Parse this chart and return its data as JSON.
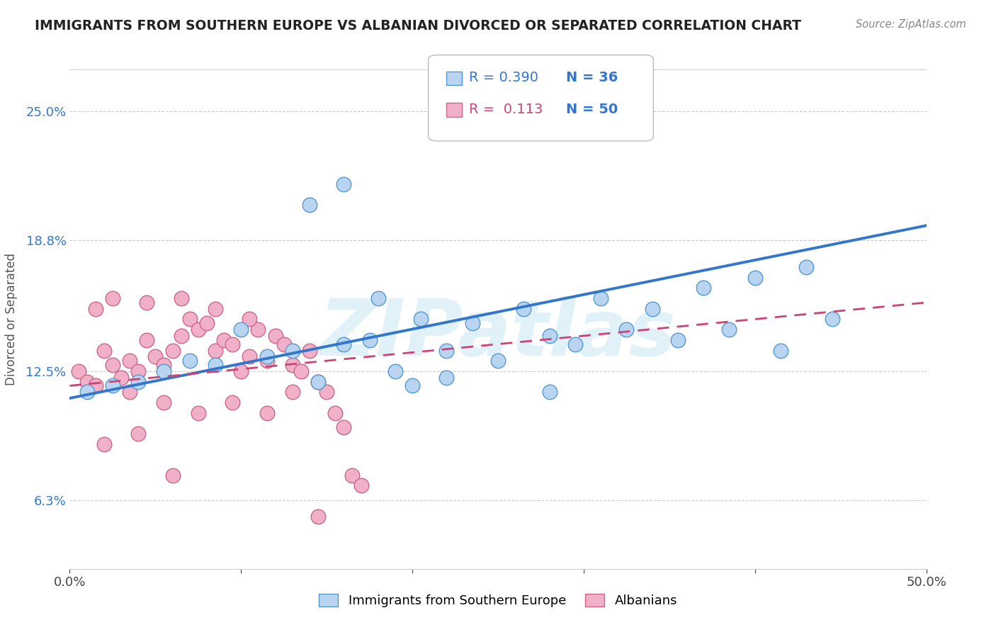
{
  "title": "IMMIGRANTS FROM SOUTHERN EUROPE VS ALBANIAN DIVORCED OR SEPARATED CORRELATION CHART",
  "source_text": "Source: ZipAtlas.com",
  "ylabel": "Divorced or Separated",
  "x_min": 0.0,
  "x_max": 50.0,
  "y_min": 3.0,
  "y_max": 27.0,
  "y_ticks": [
    6.3,
    12.5,
    18.8,
    25.0
  ],
  "x_ticks": [
    0.0,
    10.0,
    20.0,
    30.0,
    40.0,
    50.0
  ],
  "blue_color": "#b8d4f0",
  "blue_edge": "#5599cc",
  "pink_color": "#f0b0c8",
  "pink_edge": "#cc6688",
  "line_blue": "#3377cc",
  "line_pink": "#cc4477",
  "legend_label_blue": "Immigrants from Southern Europe",
  "legend_label_pink": "Albanians",
  "watermark": "ZIPatlas",
  "blue_line_start_y": 11.2,
  "blue_line_end_y": 19.5,
  "pink_line_start_y": 11.8,
  "pink_line_end_y": 15.8,
  "blue_scatter_x": [
    1.0,
    2.5,
    4.0,
    5.5,
    7.0,
    8.5,
    10.0,
    11.5,
    13.0,
    14.5,
    16.0,
    17.5,
    19.0,
    20.5,
    22.0,
    23.5,
    25.0,
    26.5,
    28.0,
    29.5,
    31.0,
    32.5,
    34.0,
    35.5,
    37.0,
    38.5,
    40.0,
    41.5,
    43.0,
    44.5,
    14.0,
    16.0,
    18.0,
    20.0,
    22.0,
    28.0
  ],
  "blue_scatter_y": [
    11.5,
    11.8,
    12.0,
    12.5,
    13.0,
    12.8,
    14.5,
    13.2,
    13.5,
    12.0,
    13.8,
    14.0,
    12.5,
    15.0,
    13.5,
    14.8,
    13.0,
    15.5,
    14.2,
    13.8,
    16.0,
    14.5,
    15.5,
    14.0,
    16.5,
    14.5,
    17.0,
    13.5,
    17.5,
    15.0,
    20.5,
    21.5,
    16.0,
    11.8,
    12.2,
    11.5
  ],
  "pink_scatter_x": [
    0.5,
    1.0,
    1.5,
    2.0,
    2.5,
    3.0,
    3.5,
    4.0,
    4.5,
    5.0,
    5.5,
    6.0,
    6.5,
    7.0,
    7.5,
    8.0,
    8.5,
    9.0,
    9.5,
    10.0,
    10.5,
    11.0,
    11.5,
    12.0,
    12.5,
    13.0,
    13.5,
    14.0,
    14.5,
    15.0,
    15.5,
    16.0,
    16.5,
    17.0,
    1.5,
    2.5,
    4.5,
    6.5,
    8.5,
    10.5,
    3.5,
    5.5,
    7.5,
    9.5,
    11.5,
    13.0,
    2.0,
    4.0,
    6.0,
    14.5
  ],
  "pink_scatter_y": [
    12.5,
    12.0,
    11.8,
    13.5,
    12.8,
    12.2,
    13.0,
    12.5,
    14.0,
    13.2,
    12.8,
    13.5,
    14.2,
    15.0,
    14.5,
    14.8,
    13.5,
    14.0,
    13.8,
    12.5,
    13.2,
    14.5,
    13.0,
    14.2,
    13.8,
    12.8,
    12.5,
    13.5,
    12.0,
    11.5,
    10.5,
    9.8,
    7.5,
    7.0,
    15.5,
    16.0,
    15.8,
    16.0,
    15.5,
    15.0,
    11.5,
    11.0,
    10.5,
    11.0,
    10.5,
    11.5,
    9.0,
    9.5,
    7.5,
    5.5
  ]
}
